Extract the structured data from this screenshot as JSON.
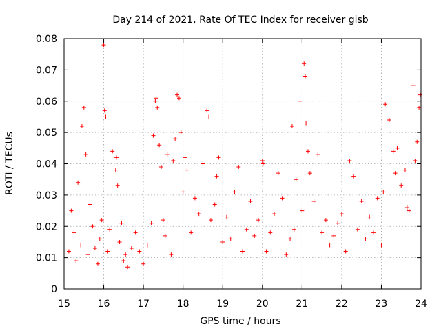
{
  "chart_data": {
    "type": "scatter",
    "title": "Day 214 of 2021, Rate Of TEC Index for receiver gisb",
    "xlabel": "GPS time / hours",
    "ylabel": "ROTI / TECUs",
    "xlim": [
      15,
      24
    ],
    "ylim": [
      0,
      0.08
    ],
    "x_ticks": [
      "15",
      "16",
      "17",
      "18",
      "19",
      "20",
      "21",
      "22",
      "23",
      "24"
    ],
    "y_ticks": [
      "0",
      "0.01",
      "0.02",
      "0.03",
      "0.04",
      "0.05",
      "0.06",
      "0.07",
      "0.08"
    ],
    "grid": true,
    "marker": "+",
    "color": "#ff0000",
    "series": [
      {
        "name": "ROTI",
        "x": [
          15.12,
          15.18,
          15.25,
          15.3,
          15.35,
          15.42,
          15.45,
          15.5,
          15.55,
          15.6,
          15.65,
          15.72,
          15.78,
          15.85,
          15.9,
          15.95,
          16.0,
          16.02,
          16.05,
          16.1,
          16.15,
          16.22,
          16.3,
          16.32,
          16.35,
          16.4,
          16.45,
          16.5,
          16.55,
          16.6,
          16.7,
          16.8,
          16.9,
          17.0,
          17.1,
          17.2,
          17.25,
          17.3,
          17.32,
          17.35,
          17.4,
          17.45,
          17.5,
          17.55,
          17.6,
          17.7,
          17.75,
          17.8,
          17.85,
          17.9,
          17.95,
          18.0,
          18.05,
          18.1,
          18.2,
          18.3,
          18.4,
          18.5,
          18.6,
          18.65,
          18.7,
          18.8,
          18.85,
          18.9,
          19.0,
          19.1,
          19.2,
          19.3,
          19.4,
          19.5,
          19.6,
          19.7,
          19.8,
          19.9,
          20.0,
          20.02,
          20.1,
          20.2,
          20.3,
          20.4,
          20.5,
          20.6,
          20.7,
          20.75,
          20.8,
          20.85,
          20.95,
          21.0,
          21.05,
          21.08,
          21.1,
          21.15,
          21.2,
          21.3,
          21.4,
          21.5,
          21.6,
          21.7,
          21.8,
          21.9,
          22.0,
          22.1,
          22.2,
          22.3,
          22.4,
          22.5,
          22.6,
          22.7,
          22.8,
          22.9,
          23.0,
          23.05,
          23.1,
          23.2,
          23.3,
          23.35,
          23.4,
          23.5,
          23.6,
          23.65,
          23.7,
          23.8,
          23.85,
          23.9,
          23.95,
          23.98
        ],
        "y": [
          0.012,
          0.025,
          0.018,
          0.009,
          0.034,
          0.014,
          0.052,
          0.058,
          0.043,
          0.011,
          0.027,
          0.02,
          0.013,
          0.008,
          0.016,
          0.022,
          0.078,
          0.057,
          0.055,
          0.012,
          0.019,
          0.044,
          0.038,
          0.042,
          0.033,
          0.015,
          0.021,
          0.009,
          0.011,
          0.007,
          0.013,
          0.018,
          0.012,
          0.008,
          0.014,
          0.021,
          0.049,
          0.06,
          0.061,
          0.058,
          0.046,
          0.039,
          0.022,
          0.017,
          0.043,
          0.011,
          0.041,
          0.048,
          0.062,
          0.061,
          0.05,
          0.031,
          0.042,
          0.038,
          0.018,
          0.029,
          0.024,
          0.04,
          0.057,
          0.055,
          0.022,
          0.027,
          0.036,
          0.042,
          0.015,
          0.023,
          0.016,
          0.031,
          0.039,
          0.012,
          0.019,
          0.028,
          0.017,
          0.022,
          0.041,
          0.04,
          0.012,
          0.018,
          0.024,
          0.037,
          0.029,
          0.011,
          0.016,
          0.052,
          0.019,
          0.035,
          0.06,
          0.025,
          0.072,
          0.068,
          0.053,
          0.044,
          0.037,
          0.028,
          0.043,
          0.018,
          0.022,
          0.014,
          0.017,
          0.021,
          0.024,
          0.012,
          0.041,
          0.036,
          0.019,
          0.028,
          0.016,
          0.023,
          0.018,
          0.029,
          0.014,
          0.031,
          0.059,
          0.054,
          0.044,
          0.037,
          0.045,
          0.033,
          0.038,
          0.026,
          0.025,
          0.065,
          0.041,
          0.047,
          0.058,
          0.062
        ]
      }
    ]
  }
}
